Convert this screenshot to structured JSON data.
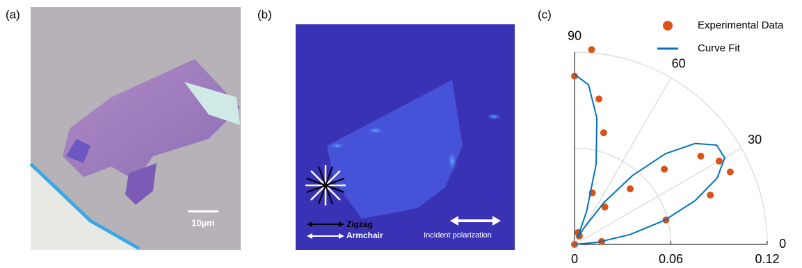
{
  "panels": [
    {
      "label": "(a)",
      "scale_bar": "10µm"
    },
    {
      "label": "(b)",
      "legend": [
        "Zigzag",
        "Armchair"
      ],
      "annotation": "Incident polarization"
    }
  ],
  "chart_data": {
    "type": "polar",
    "panel_label": "(c)",
    "rlim": [
      0,
      0.12
    ],
    "rticks": [
      0,
      0.06,
      0.12
    ],
    "thetalim": [
      0,
      90
    ],
    "thetaticks": [
      0,
      30,
      60,
      90
    ],
    "theta_grid": [
      30,
      60
    ],
    "r_grid": [
      0.06,
      0.12
    ],
    "series": [
      {
        "name": "Experimental Data",
        "kind": "scatter",
        "color": "#d95319",
        "theta": [
          85,
          90,
          80.5,
          75.4,
          71,
          73.6,
          0,
          60,
          51,
          45,
          40,
          35,
          30,
          25,
          20,
          15,
          6
        ],
        "r": [
          0.122,
          0.105,
          0.092,
          0.072,
          0.034,
          0.0077,
          0,
          0.006,
          0.03,
          0.049,
          0.073,
          0.096,
          0.104,
          0.107,
          0.09,
          0.059,
          0.017
        ]
      },
      {
        "name": "Curve Fit",
        "kind": "line",
        "color": "#0072bd",
        "theta": [
          0,
          5,
          10,
          15,
          20,
          25,
          30,
          35,
          40,
          45,
          50,
          55,
          60,
          65,
          70,
          75,
          80,
          85,
          90
        ],
        "r": [
          0,
          0.014,
          0.035,
          0.058,
          0.08,
          0.098,
          0.108,
          0.108,
          0.098,
          0.08,
          0.056,
          0.032,
          0.012,
          0.004,
          0.022,
          0.052,
          0.08,
          0.1,
          0.106
        ]
      }
    ]
  }
}
